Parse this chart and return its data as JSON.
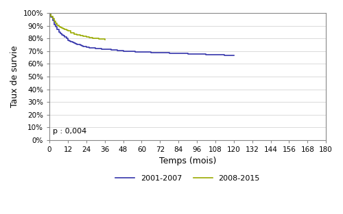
{
  "title": "",
  "xlabel": "Temps (mois)",
  "ylabel": "Taux de survie",
  "xlim": [
    0,
    180
  ],
  "ylim": [
    0,
    1.0
  ],
  "xticks": [
    0,
    12,
    24,
    36,
    48,
    60,
    72,
    84,
    96,
    108,
    120,
    132,
    144,
    156,
    168,
    180
  ],
  "yticks": [
    0.0,
    0.1,
    0.2,
    0.3,
    0.4,
    0.5,
    0.6,
    0.7,
    0.8,
    0.9,
    1.0
  ],
  "ytick_labels": [
    "0%",
    "10%",
    "20%",
    "30%",
    "40%",
    "50%",
    "60%",
    "70%",
    "80%",
    "90%",
    "100%"
  ],
  "pvalue_text": "p : 0,004",
  "legend_labels": [
    "2001-2007",
    "2008-2015"
  ],
  "line_colors": [
    "#3333aa",
    "#99aa00"
  ],
  "curve1_x": [
    0,
    1,
    2,
    3,
    4,
    5,
    6,
    7,
    8,
    9,
    10,
    11,
    12,
    13,
    14,
    15,
    16,
    17,
    18,
    19,
    20,
    21,
    22,
    23,
    24,
    26,
    28,
    30,
    32,
    34,
    36,
    40,
    44,
    48,
    52,
    56,
    60,
    66,
    72,
    78,
    84,
    90,
    96,
    102,
    108,
    114,
    120
  ],
  "curve1_y": [
    1.0,
    0.97,
    0.94,
    0.91,
    0.89,
    0.87,
    0.85,
    0.84,
    0.83,
    0.82,
    0.81,
    0.8,
    0.785,
    0.78,
    0.775,
    0.77,
    0.765,
    0.76,
    0.755,
    0.75,
    0.745,
    0.74,
    0.738,
    0.735,
    0.732,
    0.728,
    0.724,
    0.72,
    0.718,
    0.716,
    0.714,
    0.71,
    0.706,
    0.7,
    0.697,
    0.694,
    0.692,
    0.689,
    0.686,
    0.682,
    0.68,
    0.678,
    0.675,
    0.672,
    0.67,
    0.668,
    0.667
  ],
  "curve2_x": [
    0,
    1,
    2,
    3,
    4,
    5,
    6,
    7,
    8,
    9,
    10,
    11,
    12,
    14,
    16,
    18,
    20,
    22,
    24,
    26,
    28,
    30,
    32,
    34,
    36
  ],
  "curve2_y": [
    1.0,
    0.975,
    0.955,
    0.935,
    0.918,
    0.905,
    0.895,
    0.888,
    0.882,
    0.876,
    0.87,
    0.864,
    0.858,
    0.845,
    0.834,
    0.826,
    0.82,
    0.815,
    0.812,
    0.808,
    0.803,
    0.8,
    0.797,
    0.793,
    0.79
  ],
  "figsize": [
    5.0,
    3.13
  ],
  "dpi": 100,
  "background_color": "#ffffff",
  "grid_color": "#cccccc",
  "spine_color": "#888888",
  "tick_fontsize": 7.5,
  "label_fontsize": 9,
  "legend_fontsize": 8,
  "pvalue_fontsize": 8
}
